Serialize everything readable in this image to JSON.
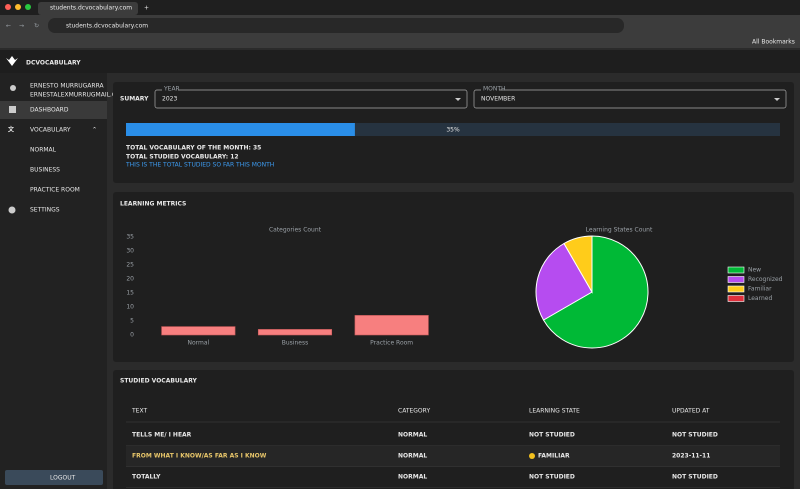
{
  "browser": {
    "tab_title": "students.dcvocabulary.com",
    "url": "students.dcvocabulary.com",
    "bookmarks": "All Bookmarks"
  },
  "app": {
    "logo": "DCVOCABULARY"
  },
  "sidebar": {
    "user_name": "ERNESTO MURRUGARRA",
    "user_email": "ERNESTALEXMURRUGMAIL.COM",
    "items": [
      "DASHBOARD",
      "VOCABULARY",
      "NORMAL",
      "BUSINESS",
      "PRACTICE ROOM",
      "SETTINGS"
    ],
    "logout": "LOGOUT"
  },
  "summary": {
    "title": "SUMARY",
    "year_label": "YEAR",
    "year": "2023",
    "month_label": "MONTH",
    "month": "NOVEMBER",
    "progress": 35,
    "progress_label": "35%",
    "total_vocabulary": "TOTAL VOCABULARY OF THE MONTH: 35",
    "total_studied": "TOTAL STUDIED VOCABULARY: 12",
    "note": "THIS IS THE TOTAL STUDIED SO FAR THIS MONTH"
  },
  "metrics": {
    "title": "LEARNING METRICS"
  },
  "chart_data": [
    {
      "type": "bar",
      "title": "Categories Count",
      "categories": [
        "Normal",
        "Business",
        "Practice Room"
      ],
      "values": [
        3,
        2,
        7
      ],
      "color": "#f77f7f",
      "ylim": [
        0,
        35
      ],
      "yticks": [
        0,
        5,
        10,
        15,
        20,
        25,
        30,
        35
      ],
      "grid": false
    },
    {
      "type": "pie",
      "title": "Learning States Count",
      "categories": [
        "New",
        "Recognized",
        "Familiar",
        "Learned"
      ],
      "values": [
        8,
        3,
        1,
        0
      ],
      "colors": [
        "#00b936",
        "#b64cf0",
        "#ffcc1a",
        "#e0303c"
      ],
      "legend": "right"
    }
  ],
  "table": {
    "title": "STUDIED VOCABULARY",
    "columns": [
      "TEXT",
      "CATEGORY",
      "LEARNING STATE",
      "UPDATED AT"
    ],
    "rows": [
      [
        "TELLS ME/ I HEAR",
        "NORMAL",
        "NOT STUDIED",
        "NOT STUDIED"
      ],
      [
        "FROM WHAT I KNOW/AS FAR AS I KNOW",
        "NORMAL",
        "FAMILIAR",
        "2023-11-11"
      ],
      [
        "TOTALLY",
        "NORMAL",
        "NOT STUDIED",
        "NOT STUDIED"
      ]
    ]
  }
}
